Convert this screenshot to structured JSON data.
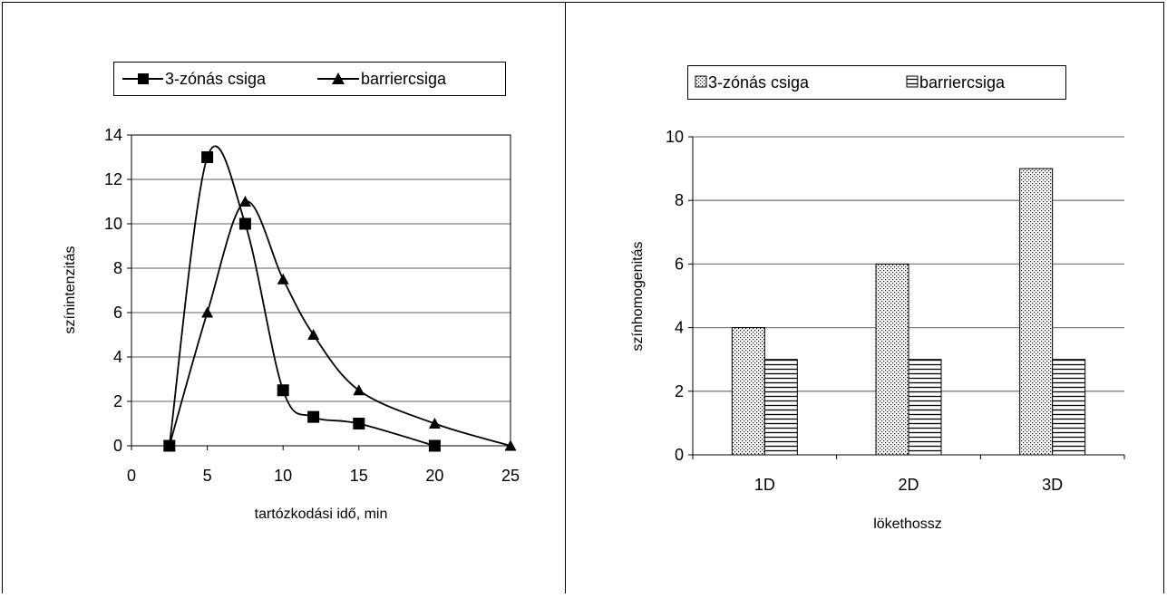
{
  "chart_data": [
    {
      "type": "line",
      "xlabel": "tartózkodási idő, min",
      "ylabel": "színintenzitás",
      "xlim": [
        0,
        25
      ],
      "ylim": [
        0,
        14
      ],
      "xticks": [
        "0",
        "5",
        "10",
        "15",
        "20",
        "25"
      ],
      "yticks": [
        "0",
        "2",
        "4",
        "6",
        "8",
        "10",
        "12",
        "14"
      ],
      "grid": "horizontal",
      "legend": "top",
      "series": [
        {
          "name": "3-zónás csiga",
          "marker": "square",
          "smooth": true,
          "x": [
            2.5,
            5,
            7.5,
            10,
            12,
            15,
            20
          ],
          "y": [
            0,
            13,
            10,
            2.5,
            1.3,
            1,
            0
          ]
        },
        {
          "name": "barriercsiga",
          "marker": "triangle",
          "smooth": true,
          "x": [
            2.5,
            5,
            7.5,
            10,
            12,
            15,
            20,
            25
          ],
          "y": [
            0,
            6,
            11,
            7.5,
            5,
            2.5,
            1,
            0
          ]
        }
      ]
    },
    {
      "type": "bar",
      "xlabel": "lökethossz",
      "ylabel": "színhomogenitás",
      "ylim": [
        0,
        10
      ],
      "yticks": [
        "0",
        "2",
        "4",
        "6",
        "8",
        "10"
      ],
      "categories": [
        "1D",
        "2D",
        "3D"
      ],
      "grid": "horizontal",
      "legend": "top",
      "series": [
        {
          "name": "3-zónás csiga",
          "pattern": "dots",
          "values": [
            4,
            6,
            9
          ]
        },
        {
          "name": "barriercsiga",
          "pattern": "horizontal-lines",
          "values": [
            3,
            3,
            3
          ]
        }
      ]
    }
  ]
}
